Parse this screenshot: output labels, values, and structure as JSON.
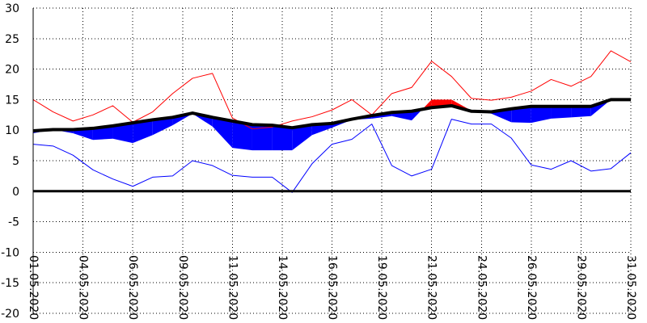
{
  "chart_data": {
    "type": "line",
    "title": "",
    "xlabel": "",
    "ylabel": "",
    "ylim": [
      -20,
      30
    ],
    "yticks": [
      30,
      25,
      20,
      15,
      10,
      5,
      0,
      -5,
      -10,
      -15,
      -20
    ],
    "grid": true,
    "legend": "none",
    "x": [
      "01.05",
      "02.05",
      "03.05",
      "04.05",
      "05.05",
      "06.05",
      "07.05",
      "08.05",
      "09.05",
      "10.05",
      "11.05",
      "12.05",
      "13.05",
      "14.05",
      "15.05",
      "16.05",
      "17.05",
      "18.05",
      "19.05",
      "20.05",
      "21.05",
      "22.05",
      "23.05",
      "24.05",
      "25.05",
      "26.05",
      "27.05",
      "28.05",
      "29.05",
      "30.05",
      "31.05"
    ],
    "x_tick_labels": [
      "01.05.2020",
      "04.05.2020",
      "06.05.2020",
      "09.05.2020",
      "11.05.2020",
      "14.05.2020",
      "16.05.2020",
      "19.05.2020",
      "21.05.2020",
      "24.05.2020",
      "26.05.2020",
      "29.05.2020",
      "31.05.2020"
    ],
    "x_tick_days": [
      0,
      2.5,
      5,
      7.5,
      10,
      12.5,
      15,
      17.5,
      20,
      22.5,
      25,
      27.5,
      30
    ],
    "series": [
      {
        "role": "max",
        "color": "#ff0000",
        "values": [
          15,
          13,
          11.5,
          12.5,
          14,
          11.3,
          13,
          16,
          18.5,
          19.3,
          12,
          10.2,
          10.5,
          11.5,
          12.2,
          13.3,
          15,
          12.5,
          16,
          17,
          21.3,
          18.8,
          15.2,
          14.9,
          15.4,
          16.4,
          18.3,
          17.2,
          18.8,
          23,
          21.2
        ]
      },
      {
        "role": "min",
        "color": "#0000ff",
        "values": [
          7.7,
          7.4,
          5.9,
          3.5,
          2,
          0.8,
          2.3,
          2.5,
          5,
          4.2,
          2.6,
          2.3,
          2.3,
          -0.2,
          4.5,
          7.7,
          8.5,
          11,
          4.2,
          2.5,
          3.6,
          11.8,
          11,
          11,
          8.7,
          4.3,
          3.6,
          5,
          3.3,
          3.7,
          6.3
        ]
      },
      {
        "role": "mean",
        "color": "#0000ff",
        "values": [
          9.5,
          10.1,
          9.5,
          8.4,
          8.6,
          7.9,
          9.2,
          10.8,
          12.7,
          10.6,
          7.1,
          6.7,
          6.7,
          6.7,
          9.2,
          10.4,
          11.7,
          11.9,
          12.3,
          11.6,
          15,
          15,
          13.2,
          12.7,
          11.3,
          11.2,
          11.9,
          12.1,
          12.3,
          15,
          15.2
        ]
      },
      {
        "role": "normal",
        "color": "#000000",
        "values": [
          9.9,
          10.1,
          10.1,
          10.3,
          10.7,
          11.2,
          11.7,
          12.1,
          12.8,
          12.1,
          11.5,
          10.9,
          10.8,
          10.4,
          10.9,
          11.1,
          11.8,
          12.4,
          12.9,
          13.1,
          13.7,
          14,
          13.1,
          13,
          13.5,
          13.9,
          13.9,
          13.9,
          13.9,
          15,
          15
        ]
      }
    ],
    "fill_colors": {
      "above": "#ff0000",
      "below": "#0000ff"
    },
    "zero_line": 0
  }
}
